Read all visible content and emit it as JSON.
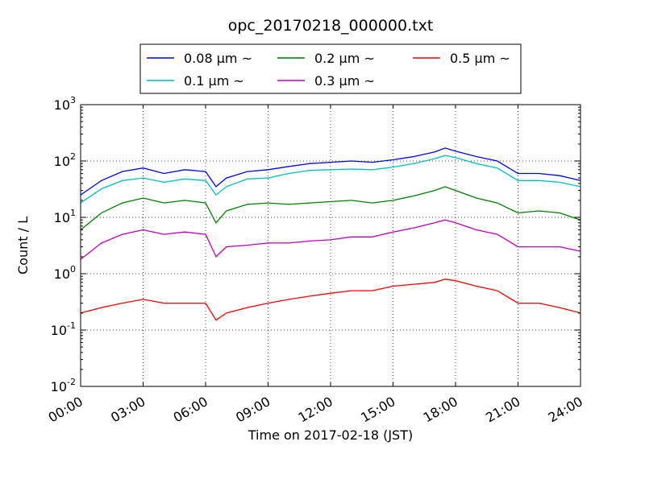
{
  "chart_data": {
    "type": "line",
    "title": "opc_20170218_000000.txt",
    "xlabel": "Time on 2017-02-18 (JST)",
    "ylabel": "Count / L",
    "xlim": [
      "00:00",
      "24:00"
    ],
    "ylim": [
      0.01,
      1000
    ],
    "yscale": "log",
    "grid": true,
    "legend_position": "top",
    "x_ticks": [
      "00:00",
      "03:00",
      "06:00",
      "09:00",
      "12:00",
      "15:00",
      "18:00",
      "21:00",
      "24:00"
    ],
    "y_ticks": [
      {
        "value": 0.01,
        "base": "10",
        "exp": "-2"
      },
      {
        "value": 0.1,
        "base": "10",
        "exp": "-1"
      },
      {
        "value": 1,
        "base": "10",
        "exp": "0"
      },
      {
        "value": 10,
        "base": "10",
        "exp": "1"
      },
      {
        "value": 100,
        "base": "10",
        "exp": "2"
      },
      {
        "value": 1000,
        "base": "10",
        "exp": "3"
      }
    ],
    "x": [
      "00:00",
      "01:00",
      "02:00",
      "03:00",
      "04:00",
      "05:00",
      "06:00",
      "06:30",
      "07:00",
      "08:00",
      "09:00",
      "10:00",
      "11:00",
      "12:00",
      "13:00",
      "14:00",
      "15:00",
      "16:00",
      "17:00",
      "17:30",
      "18:00",
      "19:00",
      "20:00",
      "21:00",
      "22:00",
      "23:00",
      "24:00"
    ],
    "series": [
      {
        "name": "0.08 μm ~",
        "color": "#0000ff",
        "values": [
          25,
          45,
          65,
          75,
          60,
          70,
          65,
          35,
          50,
          65,
          70,
          80,
          90,
          95,
          100,
          95,
          105,
          120,
          145,
          170,
          150,
          120,
          100,
          60,
          60,
          55,
          45
        ]
      },
      {
        "name": "0.1 μm ~",
        "color": "#00bfbf",
        "values": [
          18,
          32,
          45,
          50,
          42,
          48,
          45,
          25,
          35,
          48,
          50,
          60,
          68,
          70,
          72,
          70,
          78,
          90,
          110,
          125,
          115,
          90,
          75,
          45,
          45,
          42,
          35
        ]
      },
      {
        "name": "0.2 μm ~",
        "color": "#008000",
        "values": [
          6,
          12,
          18,
          22,
          18,
          20,
          18,
          8,
          13,
          17,
          18,
          17,
          18,
          19,
          20,
          18,
          20,
          24,
          30,
          35,
          30,
          22,
          18,
          12,
          13,
          12,
          9
        ]
      },
      {
        "name": "0.3 μm ~",
        "color": "#bf00bf",
        "values": [
          1.8,
          3.5,
          5,
          6,
          5,
          5.5,
          5,
          2,
          3,
          3.2,
          3.5,
          3.5,
          3.8,
          4,
          4.5,
          4.5,
          5.5,
          6.5,
          8,
          9,
          8,
          6,
          5,
          3,
          3,
          3,
          2.5
        ]
      },
      {
        "name": "0.5 μm ~",
        "color": "#ff0000",
        "values": [
          0.2,
          0.25,
          0.3,
          0.35,
          0.3,
          0.3,
          0.3,
          0.15,
          0.2,
          0.25,
          0.3,
          0.35,
          0.4,
          0.45,
          0.5,
          0.5,
          0.6,
          0.65,
          0.7,
          0.8,
          0.75,
          0.6,
          0.5,
          0.3,
          0.3,
          0.25,
          0.2
        ]
      }
    ]
  }
}
